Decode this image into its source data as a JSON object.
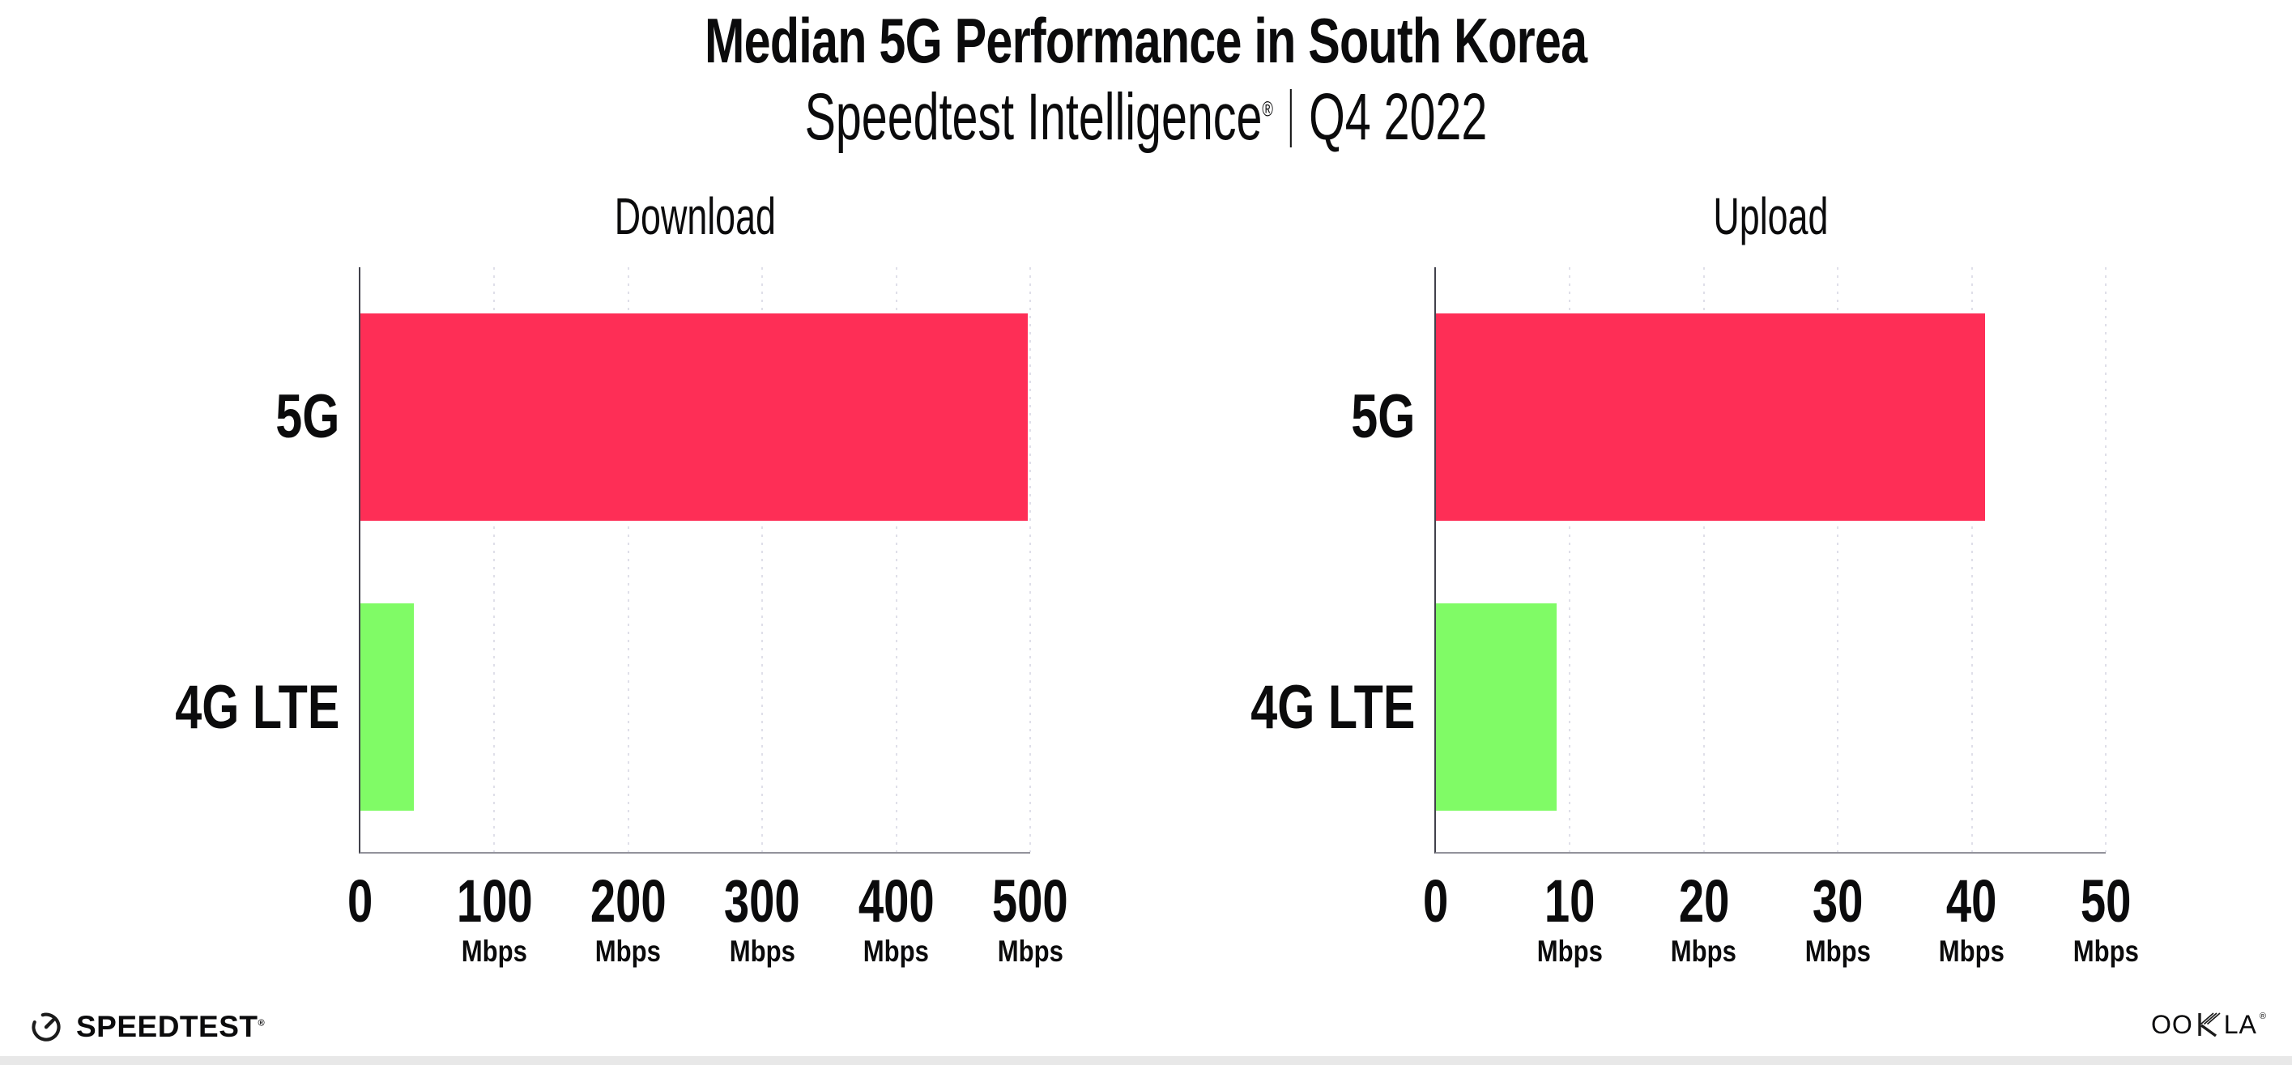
{
  "header": {
    "title": "Median 5G Performance in South Korea",
    "subtitle_product": "Speedtest Intelligence",
    "subtitle_reg": "®",
    "subtitle_period": "Q4 2022"
  },
  "footer": {
    "speedtest_logo_text": "SPEEDTEST",
    "speedtest_reg": "®",
    "ookla_letters_left": "OO",
    "ookla_letters_right": "LA",
    "ookla_reg": "®"
  },
  "colors": {
    "bar_5g": "#FE2E56",
    "bar_4g_lte": "#80FB66",
    "y_axis": "#41414B",
    "x_axis": "#93939B",
    "gridline": "#DFDFE9",
    "text": "#0B0B0C",
    "bottom_strip": "#E8E8E8"
  },
  "chart_data": [
    {
      "type": "bar",
      "orientation": "horizontal",
      "title": "Download",
      "categories": [
        "5G",
        "4G LTE"
      ],
      "values": [
        498,
        40
      ],
      "unit": "Mbps",
      "xlim": [
        0,
        500
      ],
      "xticks": [
        0,
        100,
        200,
        300,
        400,
        500
      ],
      "bar_colors": [
        "#FE2E56",
        "#80FB66"
      ],
      "grid": "vertical-dotted",
      "legend": "none"
    },
    {
      "type": "bar",
      "orientation": "horizontal",
      "title": "Upload",
      "categories": [
        "5G",
        "4G LTE"
      ],
      "values": [
        41,
        9
      ],
      "unit": "Mbps",
      "xlim": [
        0,
        50
      ],
      "xticks": [
        0,
        10,
        20,
        30,
        40,
        50
      ],
      "bar_colors": [
        "#FE2E56",
        "#80FB66"
      ],
      "grid": "vertical-dotted",
      "legend": "none"
    }
  ]
}
